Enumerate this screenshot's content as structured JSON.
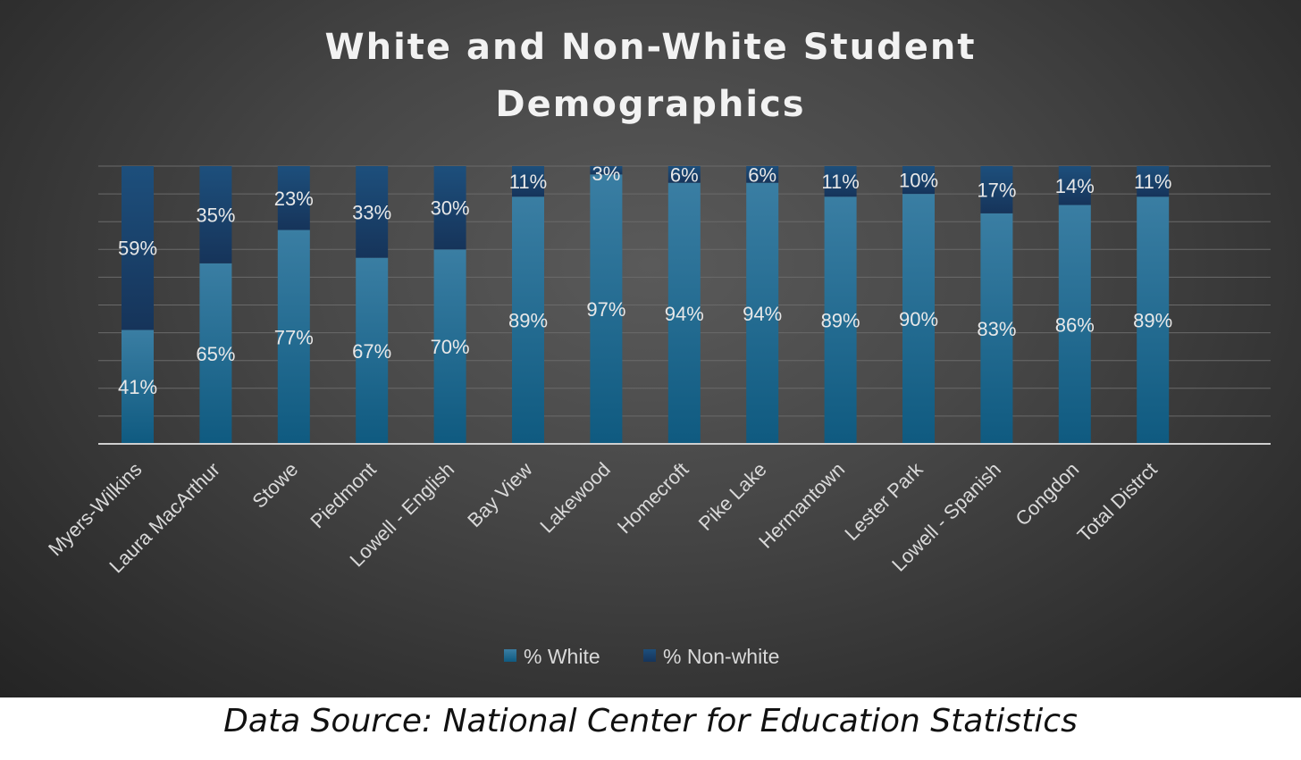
{
  "chart_data": {
    "type": "bar",
    "stacked": true,
    "percent_stacked": true,
    "title": "White and Non-White Student Demographics",
    "title_lines": [
      "White and Non-White Student",
      "Demographics"
    ],
    "categories": [
      "Myers-Wilkins",
      "Laura MacArthur",
      "Stowe",
      "Piedmont",
      "Lowell - English",
      "Bay View",
      "Lakewood",
      "Homecroft",
      "Pike Lake",
      "Hermantown",
      "Lester Park",
      "Lowell - Spanish",
      "Congdon",
      "Total Distrct"
    ],
    "series": [
      {
        "name": "% White",
        "values": [
          41,
          65,
          77,
          67,
          70,
          89,
          97,
          94,
          94,
          89,
          90,
          83,
          86,
          89
        ],
        "color": "#1f6e91"
      },
      {
        "name": "% Non-white",
        "values": [
          59,
          35,
          23,
          33,
          30,
          11,
          3,
          6,
          6,
          11,
          10,
          17,
          14,
          11
        ],
        "color": "#1b3f66"
      }
    ],
    "ylim": [
      0,
      100
    ],
    "value_suffix": "%",
    "grid": true,
    "legend_position": "bottom"
  },
  "source": "Data Source: National Center for Education Statistics"
}
